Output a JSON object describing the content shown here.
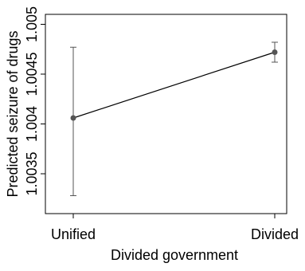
{
  "chart_data": {
    "type": "line",
    "xlabel": "Divided government",
    "ylabel": "Predicted seizure of drugs",
    "categories": [
      "Unified",
      "Divided"
    ],
    "values": [
      1.00406,
      1.00472
    ],
    "ci_lower": [
      1.00328,
      1.00462
    ],
    "ci_upper": [
      1.00477,
      1.00482
    ],
    "ylim": [
      1.0031,
      1.0051
    ],
    "yticks": [
      1.0035,
      1.004,
      1.0045,
      1.005
    ],
    "ytick_labels": [
      "1.0035",
      "1.004",
      "1.0045",
      "1.005"
    ],
    "grid": false,
    "legend": "none",
    "colors": {
      "line": "#000000",
      "marker": "#555555",
      "errorbar": "#555555",
      "axis": "#000000"
    }
  }
}
